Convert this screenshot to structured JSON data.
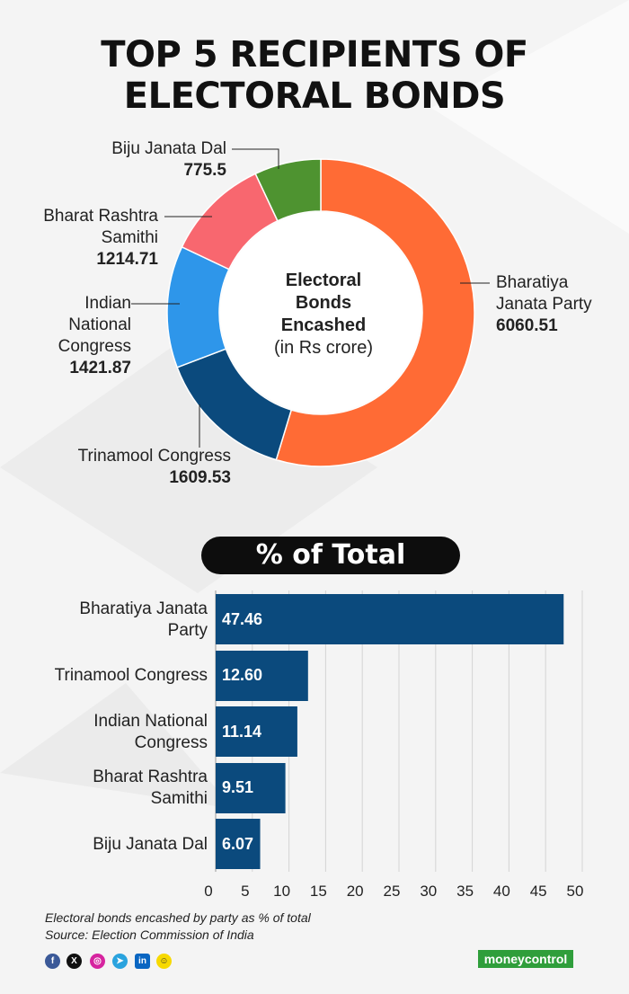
{
  "title": {
    "line1": "TOP 5 RECIPIENTS OF",
    "line2": "ELECTORAL BONDS"
  },
  "donut": {
    "center": {
      "line1": "Electoral",
      "line2": "Bonds",
      "line3": "Encashed",
      "line4": "(in Rs crore)"
    },
    "labels": [
      {
        "name_lines": [
          "Biju Janata Dal"
        ],
        "value": "775.5"
      },
      {
        "name_lines": [
          "Bharat Rashtra",
          "Samithi"
        ],
        "value": "1214.71"
      },
      {
        "name_lines": [
          "Indian",
          "National",
          "Congress"
        ],
        "value": "1421.87"
      },
      {
        "name_lines": [
          "Trinamool Congress"
        ],
        "value": "1609.53"
      },
      {
        "name_lines": [
          "Bharatiya",
          "Janata Party"
        ],
        "value": "6060.51"
      }
    ]
  },
  "bar": {
    "heading": "% of Total",
    "labels": [
      [
        "Bharatiya Janata",
        "Party"
      ],
      [
        "Trinamool Congress"
      ],
      [
        "Indian National",
        "Congress"
      ],
      [
        "Bharat Rashtra",
        "Samithi"
      ],
      [
        "Biju Janata Dal"
      ]
    ],
    "value_labels": [
      "47.46",
      "12.60",
      "11.14",
      "9.51",
      "6.07"
    ],
    "ticks": [
      "0",
      "5",
      "10",
      "15",
      "20",
      "25",
      "30",
      "35",
      "40",
      "45",
      "50"
    ]
  },
  "footer": {
    "note": "Electoral bonds encashed by party as % of total",
    "source": "Source: Election Commission of India",
    "brand_a": "money",
    "brand_b": "control"
  },
  "social_icons": [
    "facebook-icon",
    "x-icon",
    "instagram-icon",
    "telegram-icon",
    "linkedin-icon",
    "snapchat-icon"
  ],
  "chart_data": [
    {
      "type": "pie",
      "title": "TOP 5 RECIPIENTS OF ELECTORAL BONDS",
      "subtitle": "Electoral Bonds Encashed (in Rs crore)",
      "categories": [
        "Bharatiya Janata Party",
        "Trinamool Congress",
        "Indian National Congress",
        "Bharat Rashtra Samithi",
        "Biju Janata Dal"
      ],
      "values": [
        6060.51,
        1609.53,
        1421.87,
        1214.71,
        775.5
      ],
      "colors": [
        "#ff6b35",
        "#0b4a7d",
        "#2e96ea",
        "#f8676f",
        "#4e9330"
      ]
    },
    {
      "type": "bar",
      "orientation": "horizontal",
      "title": "% of Total",
      "categories": [
        "Bharatiya Janata Party",
        "Trinamool Congress",
        "Indian National Congress",
        "Bharat Rashtra Samithi",
        "Biju Janata Dal"
      ],
      "values": [
        47.46,
        12.6,
        11.14,
        9.51,
        6.07
      ],
      "xlim": [
        0,
        50
      ],
      "grid": true,
      "color": "#0b4a7d"
    }
  ]
}
